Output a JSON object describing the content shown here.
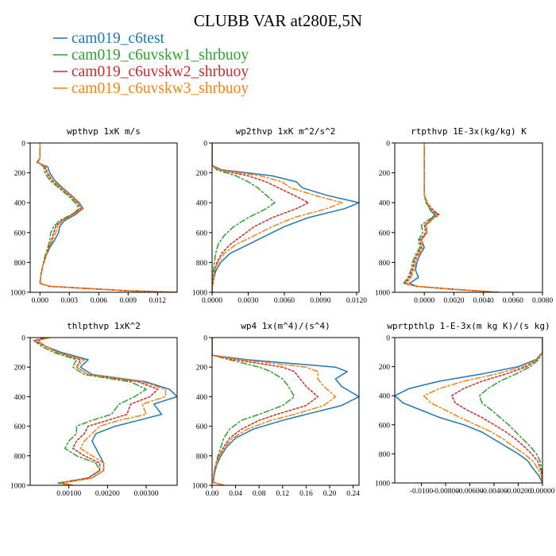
{
  "title": "CLUBB VAR at280E,5N",
  "legend": [
    {
      "label": "cam019_c6test",
      "color": "#1f77b4",
      "dash": "solid"
    },
    {
      "label": "cam019_c6uvskw1_shrbuoy",
      "color": "#2ca02c",
      "dash": "dashdot"
    },
    {
      "label": "cam019_c6uvskw2_shrbuoy",
      "color": "#d62728",
      "dash": "dot"
    },
    {
      "label": "cam019_c6uvskw3_shrbuoy",
      "color": "#ff7f0e",
      "dash": "dashdot"
    }
  ],
  "chart_data": [
    {
      "type": "line",
      "title": "wpthvp  1xK m/s",
      "xlim": [
        -0.001,
        0.014
      ],
      "xticks": [
        {
          "v": 0.0,
          "l": "0.000"
        },
        {
          "v": 0.003,
          "l": "0.003"
        },
        {
          "v": 0.006,
          "l": "0.006"
        },
        {
          "v": 0.009,
          "l": "0.009"
        },
        {
          "v": 0.012,
          "l": "0.012"
        }
      ],
      "ylim": [
        1000,
        0
      ],
      "yticks": [
        0,
        200,
        400,
        600,
        800,
        1000
      ],
      "y": [
        0,
        100,
        130,
        160,
        200,
        250,
        300,
        350,
        400,
        440,
        480,
        520,
        560,
        600,
        650,
        700,
        760,
        820,
        880,
        940,
        960,
        975,
        990,
        1000
      ],
      "series": [
        {
          "values": [
            0.0,
            0.0,
            -0.0003,
            0.0008,
            0.001,
            0.0015,
            0.0023,
            0.0032,
            0.004,
            0.0044,
            0.0036,
            0.0025,
            0.002,
            0.0019,
            0.0015,
            0.001,
            0.0006,
            0.0003,
            0.0001,
            0.0,
            0.001,
            0.005,
            0.009,
            0.014
          ]
        },
        {
          "values": [
            0.0,
            0.0,
            -0.0002,
            0.0004,
            0.0005,
            0.001,
            0.0019,
            0.0028,
            0.0036,
            0.004,
            0.0032,
            0.002,
            0.0014,
            0.0011,
            0.001,
            0.0008,
            0.0005,
            0.0003,
            0.0001,
            0.0,
            0.001,
            0.005,
            0.009,
            0.014
          ]
        },
        {
          "values": [
            0.0,
            0.0,
            -0.0002,
            0.0005,
            0.0007,
            0.0012,
            0.0021,
            0.003,
            0.0038,
            0.0042,
            0.0033,
            0.0022,
            0.0016,
            0.0014,
            0.0012,
            0.0009,
            0.0006,
            0.0003,
            0.0001,
            0.0,
            0.001,
            0.005,
            0.009,
            0.014
          ]
        },
        {
          "values": [
            0.0,
            0.0,
            -0.0002,
            0.0006,
            0.0008,
            0.0013,
            0.0022,
            0.0031,
            0.0039,
            0.0043,
            0.0034,
            0.0023,
            0.0018,
            0.0016,
            0.0013,
            0.0009,
            0.0006,
            0.0003,
            0.0001,
            0.0,
            0.001,
            0.005,
            0.009,
            0.014
          ]
        }
      ]
    },
    {
      "type": "line",
      "title": "wp2thvp  1xK m^2/s^2",
      "xlim": [
        0,
        0.0122
      ],
      "xticks": [
        {
          "v": 0,
          "l": "0.0000"
        },
        {
          "v": 0.003,
          "l": "0.0030"
        },
        {
          "v": 0.006,
          "l": "0.0060"
        },
        {
          "v": 0.009,
          "l": "0.0090"
        },
        {
          "v": 0.012,
          "l": "0.0120"
        }
      ],
      "ylim": [
        1000,
        0
      ],
      "yticks": [
        0,
        200,
        400,
        600,
        800,
        1000
      ],
      "y": [
        0,
        150,
        180,
        220,
        260,
        300,
        350,
        400,
        440,
        500,
        560,
        620,
        680,
        740,
        800,
        860,
        920,
        980,
        1000
      ],
      "series": [
        {
          "values": [
            0,
            0,
            0.0008,
            0.005,
            0.007,
            0.0075,
            0.0095,
            0.0122,
            0.011,
            0.008,
            0.006,
            0.0045,
            0.003,
            0.0015,
            0.0007,
            0.0003,
            0.0001,
            0,
            0
          ]
        },
        {
          "values": [
            0,
            0,
            0.0004,
            0.002,
            0.003,
            0.0038,
            0.0045,
            0.0052,
            0.0045,
            0.003,
            0.0018,
            0.001,
            0.0005,
            0.0003,
            0.0002,
            0.0001,
            0,
            0,
            0
          ]
        },
        {
          "values": [
            0,
            0,
            0.0005,
            0.003,
            0.0045,
            0.0055,
            0.0068,
            0.008,
            0.007,
            0.005,
            0.0035,
            0.0025,
            0.0015,
            0.0008,
            0.0004,
            0.0002,
            0.0001,
            0,
            0
          ]
        },
        {
          "values": [
            0,
            0,
            0.0006,
            0.004,
            0.0058,
            0.0065,
            0.0085,
            0.0108,
            0.0095,
            0.0068,
            0.005,
            0.0035,
            0.002,
            0.001,
            0.0005,
            0.0002,
            0.0001,
            0,
            0
          ]
        }
      ]
    },
    {
      "type": "line",
      "title": "rtpthvp  1E-3x(kg/kg) K",
      "xlim": [
        -0.002,
        0.008
      ],
      "xticks": [
        {
          "v": 0,
          "l": "0.0000"
        },
        {
          "v": 0.002,
          "l": "0.0020"
        },
        {
          "v": 0.004,
          "l": "0.0040"
        },
        {
          "v": 0.006,
          "l": "0.0060"
        },
        {
          "v": 0.008,
          "l": "0.0080"
        }
      ],
      "ylim": [
        1000,
        0
      ],
      "yticks": [
        0,
        200,
        400,
        600,
        800,
        1000
      ],
      "y": [
        0,
        200,
        350,
        400,
        450,
        480,
        520,
        550,
        600,
        650,
        700,
        750,
        800,
        850,
        900,
        940,
        960,
        980,
        1000
      ],
      "series": [
        {
          "values": [
            0,
            0,
            0,
            0.0002,
            0.0004,
            0.0007,
            0.0004,
            0.0001,
            0.0002,
            -0.0002,
            0.0,
            -0.0003,
            -0.0005,
            -0.0006,
            -0.0004,
            -0.001,
            -0.0005,
            0.002,
            0.005
          ]
        },
        {
          "values": [
            0,
            0,
            0,
            0.0001,
            0.0005,
            0.0009,
            0.0002,
            -0.0002,
            -0.0001,
            -0.0004,
            -0.0003,
            -0.0006,
            -0.0008,
            -0.0009,
            -0.0011,
            -0.0014,
            -0.0005,
            0.002,
            0.005
          ]
        },
        {
          "values": [
            0,
            0,
            0,
            0.0002,
            0.0006,
            0.001,
            0.0004,
            0.0,
            0.0001,
            -0.0003,
            -0.0002,
            -0.0005,
            -0.0007,
            -0.0008,
            -0.001,
            -0.0013,
            -0.0005,
            0.002,
            0.005
          ]
        },
        {
          "values": [
            0,
            0,
            0,
            0.0002,
            0.0005,
            0.0008,
            0.0005,
            0.0001,
            0.0002,
            -0.0002,
            -0.0001,
            -0.0004,
            -0.0006,
            -0.0007,
            -0.0009,
            -0.0012,
            -0.0005,
            0.002,
            0.005
          ]
        }
      ]
    },
    {
      "type": "line",
      "title": "thlpthvp  1xK^2",
      "xlim": [
        0,
        0.0038
      ],
      "xticks": [
        {
          "v": 0.001,
          "l": "0.00100"
        },
        {
          "v": 0.002,
          "l": "0.00200"
        },
        {
          "v": 0.003,
          "l": "0.00300"
        }
      ],
      "ylim": [
        1000,
        0
      ],
      "yticks": [
        0,
        200,
        400,
        600,
        800,
        1000
      ],
      "y": [
        0,
        20,
        60,
        100,
        150,
        200,
        250,
        300,
        350,
        400,
        450,
        520,
        560,
        600,
        650,
        700,
        750,
        800,
        850,
        900,
        950,
        985,
        1000
      ],
      "series": [
        {
          "values": [
            0.0005,
            0.0002,
            0.0004,
            0.0008,
            0.0015,
            0.0013,
            0.0016,
            0.003,
            0.0036,
            0.0038,
            0.0032,
            0.0034,
            0.0028,
            0.0022,
            0.0017,
            0.0016,
            0.0017,
            0.0018,
            0.0019,
            0.0019,
            0.0016,
            0.0008,
            0.0011
          ]
        },
        {
          "values": [
            0.0004,
            0.0001,
            0.0003,
            0.0006,
            0.0012,
            0.0011,
            0.0014,
            0.0026,
            0.003,
            0.0027,
            0.0023,
            0.0021,
            0.0016,
            0.0012,
            0.0012,
            0.001,
            0.0009,
            0.0012,
            0.0017,
            0.0018,
            0.0015,
            0.0007,
            0.0011
          ]
        },
        {
          "values": [
            0.0004,
            0.0001,
            0.0004,
            0.0007,
            0.0013,
            0.0012,
            0.0015,
            0.0028,
            0.0033,
            0.0031,
            0.0026,
            0.0025,
            0.002,
            0.0015,
            0.0014,
            0.0012,
            0.0011,
            0.0014,
            0.0018,
            0.0018,
            0.0015,
            0.0008,
            0.0011
          ]
        },
        {
          "values": [
            0.0005,
            0.0002,
            0.0004,
            0.0007,
            0.0014,
            0.0012,
            0.0015,
            0.0029,
            0.0035,
            0.0035,
            0.0029,
            0.003,
            0.0023,
            0.0018,
            0.0016,
            0.0014,
            0.0013,
            0.0016,
            0.0019,
            0.0019,
            0.0016,
            0.0008,
            0.0011
          ]
        }
      ]
    },
    {
      "type": "line",
      "title": "wp4  1x(m^4)/(s^4)",
      "xlim": [
        0,
        0.25
      ],
      "xticks": [
        {
          "v": 0,
          "l": "0.00"
        },
        {
          "v": 0.04,
          "l": "0.04"
        },
        {
          "v": 0.08,
          "l": "0.08"
        },
        {
          "v": 0.12,
          "l": "0.12"
        },
        {
          "v": 0.16,
          "l": "0.16"
        },
        {
          "v": 0.2,
          "l": "0.20"
        },
        {
          "v": 0.24,
          "l": "0.24"
        }
      ],
      "ylim": [
        1000,
        0
      ],
      "yticks": [
        0,
        200,
        400,
        600,
        800,
        1000
      ],
      "y": [
        0,
        120,
        150,
        200,
        230,
        280,
        330,
        400,
        460,
        520,
        560,
        620,
        680,
        740,
        800,
        860,
        920,
        980,
        1000
      ],
      "series": [
        {
          "values": [
            0,
            0,
            0.06,
            0.21,
            0.23,
            0.21,
            0.22,
            0.25,
            0.22,
            0.16,
            0.12,
            0.07,
            0.04,
            0.025,
            0.015,
            0.008,
            0.004,
            0.002,
            0.02
          ]
        },
        {
          "values": [
            0,
            0,
            0.03,
            0.08,
            0.1,
            0.12,
            0.13,
            0.14,
            0.12,
            0.08,
            0.05,
            0.03,
            0.02,
            0.015,
            0.01,
            0.006,
            0.003,
            0.002,
            0.02
          ]
        },
        {
          "values": [
            0,
            0,
            0.04,
            0.12,
            0.14,
            0.15,
            0.16,
            0.18,
            0.16,
            0.11,
            0.08,
            0.05,
            0.03,
            0.02,
            0.012,
            0.007,
            0.003,
            0.002,
            0.02
          ]
        },
        {
          "values": [
            0,
            0,
            0.05,
            0.16,
            0.18,
            0.18,
            0.19,
            0.21,
            0.19,
            0.14,
            0.1,
            0.06,
            0.035,
            0.022,
            0.013,
            0.007,
            0.003,
            0.002,
            0.02
          ]
        }
      ]
    },
    {
      "type": "line",
      "title": "wprtpthlp  1-E-3x(m kg K)/(s kg)",
      "xlim": [
        -0.0122,
        0
      ],
      "xticks": [
        {
          "v": -0.01,
          "l": "-0.0100"
        },
        {
          "v": -0.008,
          "l": "-0.00800"
        },
        {
          "v": -0.006,
          "l": "-0.00600"
        },
        {
          "v": -0.004,
          "l": "-0.00400"
        },
        {
          "v": -0.002,
          "l": "-0.00200"
        },
        {
          "v": 0,
          "l": "0.00000"
        }
      ],
      "ylim": [
        1000,
        0
      ],
      "yticks": [
        0,
        200,
        400,
        600,
        800,
        1000
      ],
      "y": [
        0,
        100,
        150,
        200,
        250,
        300,
        350,
        400,
        450,
        500,
        550,
        600,
        650,
        700,
        750,
        800,
        850,
        900,
        950,
        1000
      ],
      "series": [
        {
          "values": [
            0,
            0,
            -0.0005,
            -0.002,
            -0.005,
            -0.0085,
            -0.011,
            -0.0122,
            -0.0115,
            -0.01,
            -0.0085,
            -0.0065,
            -0.005,
            -0.004,
            -0.003,
            -0.002,
            -0.0012,
            -0.0008,
            -0.0003,
            0
          ]
        },
        {
          "values": [
            0,
            0,
            -0.0003,
            -0.001,
            -0.0022,
            -0.0035,
            -0.0045,
            -0.0052,
            -0.005,
            -0.0042,
            -0.0035,
            -0.0028,
            -0.0022,
            -0.0016,
            -0.001,
            -0.0005,
            -0.0002,
            -0.0001,
            0,
            0
          ]
        },
        {
          "values": [
            0,
            0,
            -0.0004,
            -0.0013,
            -0.003,
            -0.005,
            -0.0065,
            -0.0075,
            -0.0072,
            -0.0062,
            -0.005,
            -0.004,
            -0.003,
            -0.0022,
            -0.0015,
            -0.0009,
            -0.0004,
            -0.0002,
            0,
            0
          ]
        },
        {
          "values": [
            0,
            0,
            -0.0004,
            -0.0016,
            -0.0038,
            -0.0065,
            -0.0085,
            -0.0098,
            -0.0092,
            -0.008,
            -0.0068,
            -0.0055,
            -0.0042,
            -0.0032,
            -0.0024,
            -0.0015,
            -0.0008,
            -0.0004,
            -0.0001,
            0
          ]
        }
      ]
    }
  ]
}
